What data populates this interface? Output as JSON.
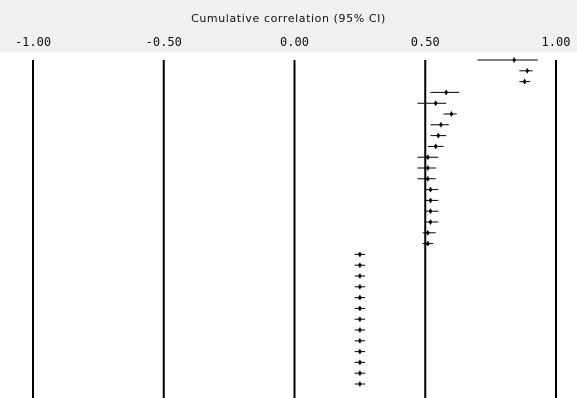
{
  "chart_data": {
    "type": "forest",
    "title": "Cumulative correlation (95% CI)",
    "xlim": [
      -1.0,
      1.0
    ],
    "ticks": [
      {
        "value": -1.0,
        "label": "-1.00"
      },
      {
        "value": -0.5,
        "label": "-0.50"
      },
      {
        "value": 0.0,
        "label": "0.00"
      },
      {
        "value": 0.5,
        "label": "0.50"
      },
      {
        "value": 1.0,
        "label": "1.00"
      }
    ],
    "reference_lines": [
      -1.0,
      -0.5,
      0.0,
      0.5,
      1.0
    ],
    "rows": [
      {
        "est": 0.84,
        "lo": 0.7,
        "hi": 0.93
      },
      {
        "est": 0.89,
        "lo": 0.86,
        "hi": 0.91
      },
      {
        "est": 0.88,
        "lo": 0.86,
        "hi": 0.9
      },
      {
        "est": 0.58,
        "lo": 0.52,
        "hi": 0.63
      },
      {
        "est": 0.54,
        "lo": 0.47,
        "hi": 0.58
      },
      {
        "est": 0.6,
        "lo": 0.57,
        "hi": 0.62
      },
      {
        "est": 0.56,
        "lo": 0.52,
        "hi": 0.59
      },
      {
        "est": 0.55,
        "lo": 0.52,
        "hi": 0.58
      },
      {
        "est": 0.54,
        "lo": 0.51,
        "hi": 0.57
      },
      {
        "est": 0.51,
        "lo": 0.47,
        "hi": 0.55
      },
      {
        "est": 0.51,
        "lo": 0.47,
        "hi": 0.54
      },
      {
        "est": 0.51,
        "lo": 0.47,
        "hi": 0.54
      },
      {
        "est": 0.52,
        "lo": 0.5,
        "hi": 0.55
      },
      {
        "est": 0.52,
        "lo": 0.5,
        "hi": 0.55
      },
      {
        "est": 0.52,
        "lo": 0.5,
        "hi": 0.55
      },
      {
        "est": 0.52,
        "lo": 0.5,
        "hi": 0.55
      },
      {
        "est": 0.51,
        "lo": 0.49,
        "hi": 0.54
      },
      {
        "est": 0.51,
        "lo": 0.49,
        "hi": 0.53
      },
      {
        "est": 0.25,
        "lo": 0.23,
        "hi": 0.27
      },
      {
        "est": 0.25,
        "lo": 0.23,
        "hi": 0.27
      },
      {
        "est": 0.25,
        "lo": 0.23,
        "hi": 0.27
      },
      {
        "est": 0.25,
        "lo": 0.23,
        "hi": 0.27
      },
      {
        "est": 0.25,
        "lo": 0.23,
        "hi": 0.27
      },
      {
        "est": 0.25,
        "lo": 0.23,
        "hi": 0.27
      },
      {
        "est": 0.25,
        "lo": 0.23,
        "hi": 0.27
      },
      {
        "est": 0.25,
        "lo": 0.23,
        "hi": 0.27
      },
      {
        "est": 0.25,
        "lo": 0.23,
        "hi": 0.27
      },
      {
        "est": 0.25,
        "lo": 0.23,
        "hi": 0.27
      },
      {
        "est": 0.25,
        "lo": 0.23,
        "hi": 0.27
      },
      {
        "est": 0.25,
        "lo": 0.23,
        "hi": 0.27
      },
      {
        "est": 0.25,
        "lo": 0.23,
        "hi": 0.27
      }
    ],
    "colors": {
      "line": "#000000",
      "header_band": "#f1f1f1",
      "background": "#ffffff"
    }
  }
}
